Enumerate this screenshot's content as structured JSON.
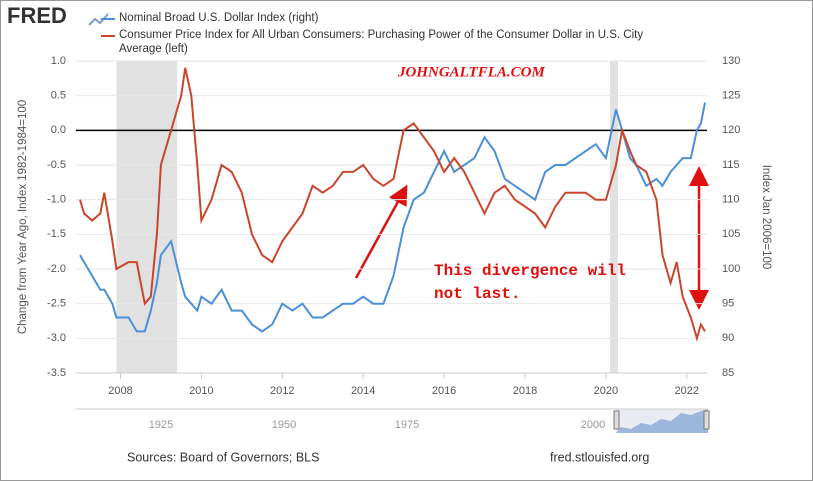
{
  "chart_data": {
    "type": "line",
    "logo": "FRED",
    "series": [
      {
        "name": "Nominal Broad U.S. Dollar Index (right)",
        "color": "#4a90d9",
        "axis": "y2",
        "values": [
          102,
          101,
          99,
          97,
          97,
          95,
          93,
          93,
          91,
          91,
          94,
          98,
          102,
          104,
          98,
          96,
          95,
          94,
          96,
          95,
          97,
          94,
          94,
          92,
          91,
          92,
          95,
          94,
          95,
          93,
          93,
          94,
          95,
          95,
          96,
          95,
          95,
          99,
          106,
          110,
          111,
          114,
          117,
          114,
          115,
          116,
          119,
          117,
          113,
          112,
          111,
          110,
          114,
          115,
          115,
          116,
          117,
          118,
          116,
          123,
          120,
          116,
          115,
          112,
          113,
          112,
          114,
          115,
          116,
          116,
          120,
          121,
          124
        ]
      },
      {
        "name": "Consumer Price Index for All Urban Consumers: Purchasing Power of the Consumer Dollar in U.S. City Average (left)",
        "color": "#c9462c",
        "values": [
          -1.0,
          -1.2,
          -1.3,
          -1.2,
          -0.9,
          -1.6,
          -2.0,
          -1.9,
          -1.9,
          -2.5,
          -2.4,
          -1.5,
          -0.5,
          0.0,
          0.5,
          0.9,
          0.5,
          -0.5,
          -1.3,
          -1.0,
          -0.5,
          -0.6,
          -0.9,
          -1.5,
          -1.8,
          -1.9,
          -1.6,
          -1.4,
          -1.2,
          -0.8,
          -0.9,
          -0.8,
          -0.6,
          -0.6,
          -0.5,
          -0.7,
          -0.8,
          -0.7,
          0.0,
          0.1,
          -0.1,
          -0.3,
          -0.6,
          -0.4,
          -0.6,
          -0.9,
          -1.2,
          -0.9,
          -0.8,
          -1.0,
          -1.1,
          -1.2,
          -1.4,
          -1.1,
          -0.9,
          -0.9,
          -0.9,
          -1.0,
          -1.0,
          -0.5,
          0.0,
          -0.3,
          -0.5,
          -0.6,
          -1.0,
          -1.8,
          -2.2,
          -1.9,
          -2.4,
          -2.7,
          -3.0,
          -2.8,
          -2.9
        ]
      }
    ],
    "x": [
      2007.0,
      2007.1,
      2007.3,
      2007.5,
      2007.6,
      2007.8,
      2007.9,
      2008.2,
      2008.4,
      2008.6,
      2008.75,
      2008.9,
      2009.0,
      2009.25,
      2009.5,
      2009.6,
      2009.75,
      2009.9,
      2010.0,
      2010.25,
      2010.5,
      2010.75,
      2011.0,
      2011.25,
      2011.5,
      2011.75,
      2012.0,
      2012.25,
      2012.5,
      2012.75,
      2013.0,
      2013.25,
      2013.5,
      2013.75,
      2014.0,
      2014.25,
      2014.5,
      2014.75,
      2015.0,
      2015.25,
      2015.5,
      2015.75,
      2016.0,
      2016.25,
      2016.5,
      2016.75,
      2017.0,
      2017.25,
      2017.5,
      2017.75,
      2018.0,
      2018.25,
      2018.5,
      2018.75,
      2019.0,
      2019.25,
      2019.5,
      2019.75,
      2020.0,
      2020.25,
      2020.4,
      2020.6,
      2020.75,
      2021.0,
      2021.25,
      2021.4,
      2021.6,
      2021.75,
      2021.9,
      2022.1,
      2022.25,
      2022.35,
      2022.45
    ],
    "xlim": [
      2006.9,
      2022.5
    ],
    "xticks": [
      2008,
      2010,
      2012,
      2014,
      2016,
      2018,
      2020,
      2022
    ],
    "ylim": [
      -3.5,
      1.0
    ],
    "yticks": [
      {
        "value": 1.0,
        "label": "1.0"
      },
      0.5,
      {
        "value": 0.0,
        "label": "0.0"
      },
      -0.5,
      {
        "value": -1.0,
        "label": "-1.0"
      },
      -1.5,
      {
        "value": -2.0,
        "label": "-2.0"
      },
      -2.5,
      {
        "value": -3.0,
        "label": "-3.0"
      },
      -3.5
    ],
    "y2lim": [
      85,
      130
    ],
    "y2ticks": [
      85,
      90,
      95,
      100,
      105,
      110,
      115,
      120,
      125,
      130
    ],
    "ylabel": "Change from Year Ago, Index 1982-1984=100",
    "y2label": "Index Jan 2006=100",
    "reference_line": 0,
    "recessions": [
      [
        2007.9,
        2009.4
      ],
      [
        2020.1,
        2020.3
      ]
    ],
    "watermark": "JOHNGALTFLA.COM",
    "annotation": [
      "This divergence will",
      "not last."
    ],
    "navigator_labels": [
      "1925",
      "1950",
      "1975",
      "2000"
    ],
    "source": "Sources: Board of Governors; BLS",
    "site": "fred.stlouisfed.org"
  }
}
